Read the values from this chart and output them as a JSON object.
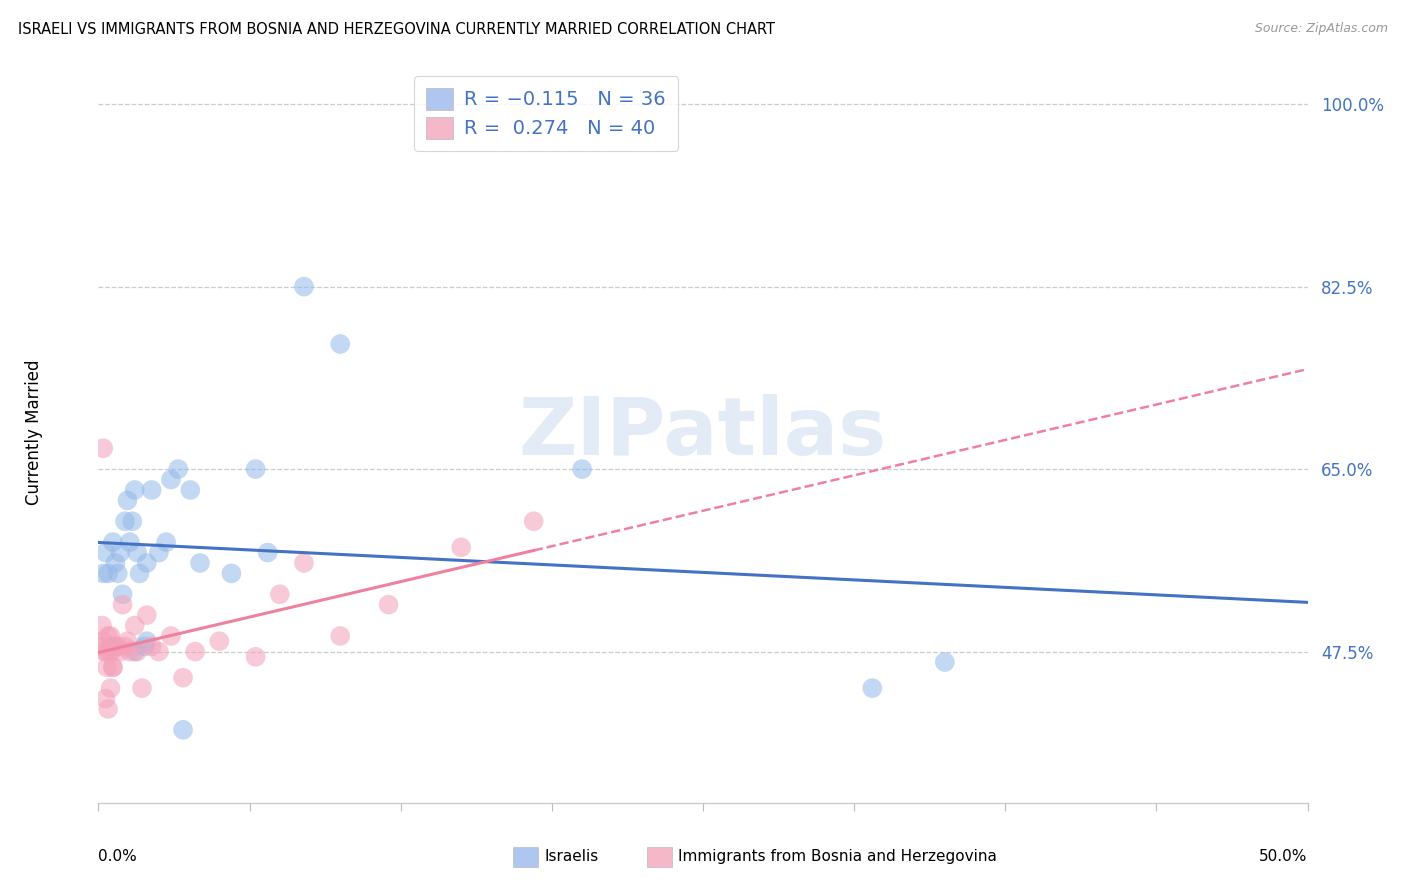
{
  "title": "ISRAELI VS IMMIGRANTS FROM BOSNIA AND HERZEGOVINA CURRENTLY MARRIED CORRELATION CHART",
  "source": "Source: ZipAtlas.com",
  "ylabel": "Currently Married",
  "yticks": [
    47.5,
    65.0,
    82.5,
    100.0
  ],
  "ytick_labels": [
    "47.5%",
    "65.0%",
    "82.5%",
    "100.0%"
  ],
  "xmin": 0.0,
  "xmax": 50.0,
  "ymin": 33.0,
  "ymax": 104.0,
  "watermark_text": "ZIPatlas",
  "israelis_color": "#93b8e8",
  "immigrants_color": "#f4a0b8",
  "israelis_line_color": "#4472c4",
  "immigrants_line_color": "#f080a0",
  "israelis_x": [
    0.2,
    0.3,
    0.4,
    0.5,
    0.6,
    0.7,
    0.8,
    0.9,
    1.0,
    1.1,
    1.2,
    1.3,
    1.4,
    1.5,
    1.6,
    1.7,
    1.9,
    2.0,
    2.2,
    2.5,
    2.8,
    3.0,
    3.3,
    3.8,
    4.2,
    5.5,
    6.5,
    7.0,
    8.5,
    10.0,
    1.5,
    2.0,
    3.5,
    20.0,
    32.0,
    35.0
  ],
  "israelis_y": [
    55.0,
    57.0,
    55.0,
    48.0,
    58.0,
    56.0,
    55.0,
    57.0,
    53.0,
    60.0,
    62.0,
    58.0,
    60.0,
    63.0,
    57.0,
    55.0,
    48.0,
    56.0,
    63.0,
    57.0,
    58.0,
    64.0,
    65.0,
    63.0,
    56.0,
    55.0,
    65.0,
    57.0,
    82.5,
    77.0,
    47.5,
    48.5,
    40.0,
    65.0,
    44.0,
    46.5
  ],
  "immigrants_x": [
    0.1,
    0.2,
    0.25,
    0.3,
    0.35,
    0.4,
    0.45,
    0.5,
    0.55,
    0.6,
    0.7,
    0.8,
    0.9,
    1.0,
    1.1,
    1.2,
    1.3,
    1.5,
    1.6,
    1.8,
    2.0,
    2.2,
    2.5,
    3.0,
    3.5,
    4.0,
    5.0,
    6.5,
    7.5,
    8.5,
    10.0,
    12.0,
    15.0,
    18.0,
    0.3,
    0.4,
    0.5,
    0.6,
    0.2,
    0.15
  ],
  "immigrants_y": [
    48.0,
    48.5,
    47.5,
    47.5,
    46.0,
    49.0,
    47.5,
    49.0,
    47.5,
    46.0,
    48.0,
    48.0,
    47.5,
    52.0,
    48.0,
    48.5,
    47.5,
    50.0,
    47.5,
    44.0,
    51.0,
    48.0,
    47.5,
    49.0,
    45.0,
    47.5,
    48.5,
    47.0,
    53.0,
    56.0,
    49.0,
    52.0,
    57.5,
    60.0,
    43.0,
    42.0,
    44.0,
    46.0,
    67.0,
    50.0
  ],
  "legend_blue_color": "#aec6f0",
  "legend_pink_color": "#f4b8c8",
  "legend_r1": "R = −0.115",
  "legend_n1": "N = 36",
  "legend_r2": "R =  0.274",
  "legend_n2": "N = 40",
  "bottom_label1": "Israelis",
  "bottom_label2": "Immigrants from Bosnia and Herzegovina"
}
